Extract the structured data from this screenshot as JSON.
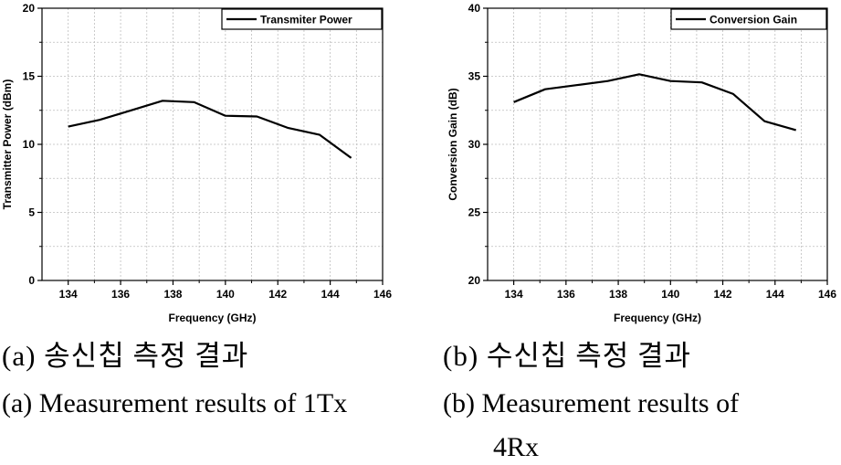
{
  "chart_data": [
    {
      "type": "line",
      "title": "",
      "xlabel": "Frequency (GHz)",
      "ylabel": "Transmitter Power (dBm)",
      "xlim": [
        133,
        146
      ],
      "ylim": [
        0,
        20
      ],
      "xticks": [
        134,
        136,
        138,
        140,
        142,
        144,
        146
      ],
      "yticks": [
        0,
        5,
        10,
        15,
        20
      ],
      "grid": true,
      "legend_position": "top-right",
      "series": [
        {
          "name": "Transmiter Power",
          "x": [
            134.0,
            135.2,
            136.4,
            137.6,
            138.8,
            140.0,
            141.2,
            142.4,
            143.6,
            144.8
          ],
          "y": [
            11.3,
            11.8,
            12.5,
            13.2,
            13.1,
            12.1,
            12.05,
            11.2,
            10.7,
            9.0
          ]
        }
      ]
    },
    {
      "type": "line",
      "title": "",
      "xlabel": "Frequency (GHz)",
      "ylabel": "Conversion Gain (dB)",
      "xlim": [
        133,
        146
      ],
      "ylim": [
        20,
        40
      ],
      "xticks": [
        134,
        136,
        138,
        140,
        142,
        144,
        146
      ],
      "yticks": [
        20,
        25,
        30,
        35,
        40
      ],
      "grid": true,
      "legend_position": "top-right",
      "series": [
        {
          "name": "Conversion Gain",
          "x": [
            134.0,
            135.2,
            136.4,
            137.6,
            138.8,
            140.0,
            141.2,
            142.4,
            143.6,
            144.8
          ],
          "y": [
            33.1,
            34.05,
            34.35,
            34.65,
            35.15,
            34.65,
            34.55,
            33.7,
            31.7,
            31.05
          ]
        }
      ]
    }
  ],
  "captions": {
    "left_ko": "(a) 송신칩 측정 결과",
    "right_ko": "(b) 수신칩 측정 결과",
    "left_en": "(a) Measurement results of 1Tx",
    "right_en_line1": "(b) Measurement results of",
    "right_en_line2": "4Rx"
  }
}
